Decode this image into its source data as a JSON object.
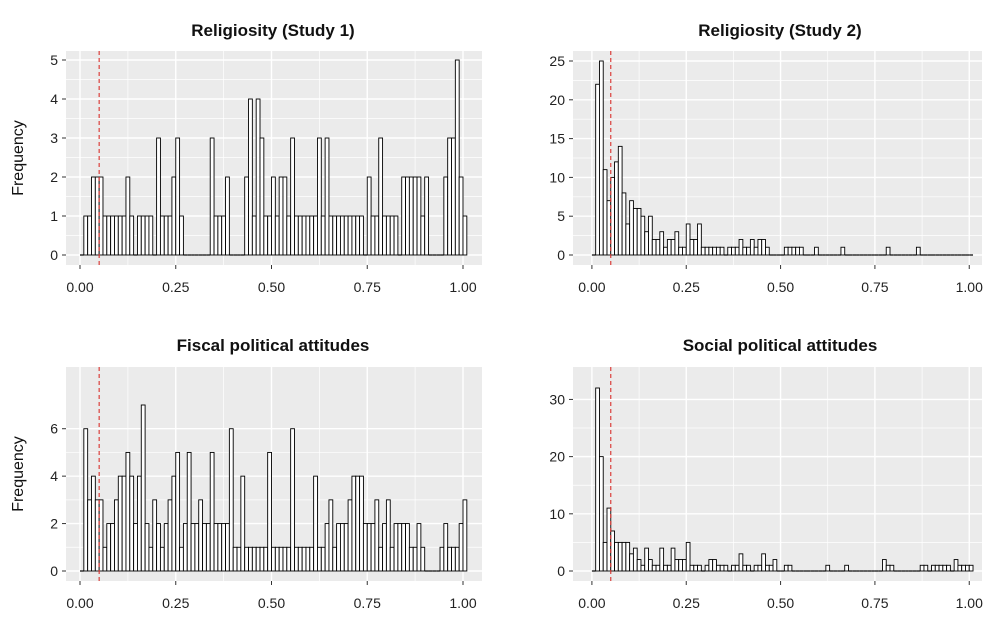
{
  "figure": {
    "background": "#ffffff",
    "panel_background": "#ebebeb",
    "grid_color": "#ffffff",
    "bar_fill": "#ffffff",
    "bar_stroke": "#000000",
    "reference_line_color": "#d9302c"
  },
  "chart_data": [
    {
      "type": "bar",
      "title": "Religiosity (Study 1)",
      "xlabel": "",
      "ylabel": "Frequency",
      "xlim": [
        0,
        1
      ],
      "ylim": [
        0,
        5
      ],
      "x_ticks": [
        "0.00",
        "0.25",
        "0.50",
        "0.75",
        "1.00"
      ],
      "y_ticks": [
        "0",
        "1",
        "2",
        "3",
        "4",
        "5"
      ],
      "reference_line_x": 0.05,
      "grid": true,
      "bin_width": 0.01,
      "values": [
        0,
        1,
        1,
        2,
        2,
        2,
        1,
        1,
        1,
        1,
        1,
        1,
        2,
        1,
        0,
        1,
        1,
        1,
        1,
        0,
        3,
        1,
        1,
        1,
        2,
        3,
        1,
        0,
        0,
        0,
        0,
        0,
        0,
        0,
        3,
        1,
        1,
        1,
        2,
        0,
        0,
        0,
        0,
        2,
        4,
        1,
        4,
        3,
        1,
        1,
        2,
        1,
        2,
        2,
        1,
        3,
        1,
        1,
        1,
        1,
        1,
        1,
        3,
        1,
        3,
        1,
        1,
        1,
        1,
        1,
        1,
        1,
        1,
        1,
        0,
        2,
        1,
        1,
        3,
        1,
        1,
        1,
        1,
        0,
        2,
        2,
        2,
        2,
        2,
        1,
        2,
        0,
        0,
        0,
        0,
        2,
        3,
        3,
        5,
        2,
        1
      ]
    },
    {
      "type": "bar",
      "title": "Religiosity (Study 2)",
      "xlabel": "",
      "ylabel": "",
      "xlim": [
        0,
        1
      ],
      "ylim": [
        0,
        25
      ],
      "x_ticks": [
        "0.00",
        "0.25",
        "0.50",
        "0.75",
        "1.00"
      ],
      "y_ticks": [
        "0",
        "5",
        "10",
        "15",
        "20",
        "25"
      ],
      "reference_line_x": 0.05,
      "grid": true,
      "bin_width": 0.01,
      "values": [
        0,
        22,
        25,
        11,
        7,
        10,
        12,
        14,
        8,
        4,
        7,
        6,
        6,
        5,
        3,
        5,
        2,
        2,
        3,
        1,
        2,
        2,
        3,
        1,
        1,
        4,
        2,
        2,
        4,
        1,
        1,
        1,
        1,
        1,
        1,
        0,
        1,
        1,
        1,
        2,
        1,
        1,
        2,
        1,
        2,
        2,
        1,
        0,
        0,
        0,
        0,
        1,
        1,
        1,
        1,
        1,
        0,
        0,
        0,
        1,
        0,
        0,
        0,
        0,
        0,
        0,
        1,
        0,
        0,
        0,
        0,
        0,
        0,
        0,
        0,
        0,
        0,
        0,
        1,
        0,
        0,
        0,
        0,
        0,
        0,
        0,
        1,
        0,
        0,
        0,
        0,
        0,
        0,
        0,
        0,
        0,
        0,
        0,
        0,
        0,
        0
      ]
    },
    {
      "type": "bar",
      "title": "Fiscal political attitudes",
      "xlabel": "",
      "ylabel": "Frequency",
      "xlim": [
        0,
        1
      ],
      "ylim": [
        0,
        7
      ],
      "x_ticks": [
        "0.00",
        "0.25",
        "0.50",
        "0.75",
        "1.00"
      ],
      "y_ticks": [
        "0",
        "2",
        "4",
        "6"
      ],
      "reference_line_x": 0.05,
      "grid": true,
      "bin_width": 0.01,
      "values": [
        0,
        6,
        3,
        4,
        3,
        3,
        1,
        2,
        2,
        3,
        4,
        4,
        5,
        4,
        2,
        4,
        7,
        2,
        1,
        3,
        2,
        1,
        2,
        3,
        4,
        5,
        1,
        2,
        5,
        2,
        2,
        3,
        2,
        2,
        5,
        2,
        2,
        2,
        2,
        6,
        1,
        1,
        4,
        1,
        1,
        1,
        1,
        1,
        1,
        5,
        1,
        1,
        1,
        1,
        1,
        6,
        1,
        1,
        1,
        1,
        1,
        4,
        1,
        1,
        2,
        3,
        1,
        2,
        2,
        2,
        3,
        4,
        4,
        4,
        2,
        2,
        2,
        3,
        1,
        2,
        3,
        1,
        2,
        2,
        2,
        2,
        1,
        1,
        2,
        1,
        0,
        0,
        0,
        0,
        1,
        2,
        1,
        1,
        1,
        2,
        3
      ]
    },
    {
      "type": "bar",
      "title": "Social political attitudes",
      "xlabel": "",
      "ylabel": "",
      "xlim": [
        0,
        1
      ],
      "ylim": [
        0,
        32
      ],
      "x_ticks": [
        "0.00",
        "0.25",
        "0.50",
        "0.75",
        "1.00"
      ],
      "y_ticks": [
        "0",
        "10",
        "20",
        "30"
      ],
      "reference_line_x": 0.05,
      "grid": true,
      "bin_width": 0.01,
      "values": [
        0,
        32,
        20,
        5,
        11,
        7,
        5,
        5,
        5,
        5,
        3,
        4,
        2,
        1,
        4,
        2,
        1,
        1,
        4,
        1,
        1,
        4,
        2,
        2,
        2,
        5,
        1,
        1,
        1,
        0,
        1,
        2,
        2,
        1,
        1,
        1,
        0,
        1,
        1,
        3,
        1,
        1,
        0,
        1,
        1,
        3,
        1,
        1,
        2,
        0,
        0,
        1,
        1,
        0,
        0,
        0,
        0,
        0,
        0,
        0,
        0,
        0,
        1,
        0,
        0,
        0,
        0,
        1,
        0,
        0,
        0,
        0,
        0,
        0,
        0,
        0,
        0,
        2,
        1,
        1,
        0,
        0,
        0,
        0,
        0,
        0,
        0,
        1,
        1,
        0,
        1,
        1,
        1,
        1,
        1,
        0,
        2,
        1,
        1,
        1,
        1
      ]
    }
  ]
}
